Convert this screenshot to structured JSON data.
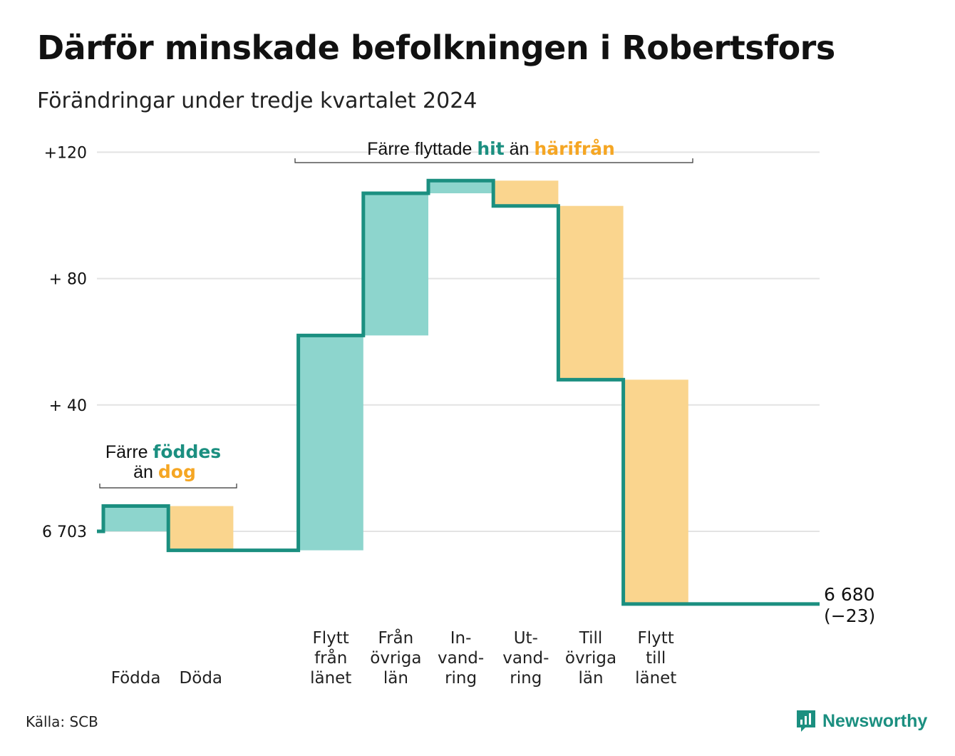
{
  "title": "Därför minskade befolkningen i Robertsfors",
  "subtitle": "Förändringar under tredje kvartalet 2024",
  "source": "Källa: SCB",
  "brand": "Newsworthy",
  "colors": {
    "increase_fill": "#8dd5cd",
    "decrease_fill": "#fad58e",
    "line": "#1b8f80",
    "accent_text_teal": "#1b8f80",
    "accent_text_orange": "#f5a623",
    "grid": "#e3e3e3"
  },
  "annotations": {
    "births": {
      "prefix": "Färre ",
      "highlight1": "föddes",
      "line2_prefix": "än ",
      "highlight2": "dog"
    },
    "moves": {
      "prefix": "Färre flyttade ",
      "highlight1": "hit",
      "mid": " än ",
      "highlight2": "härifrån"
    }
  },
  "chart_data": {
    "type": "waterfall",
    "title": "Därför minskade befolkningen i Robertsfors",
    "subtitle": "Förändringar under tredje kvartalet 2024",
    "baseline": 6703,
    "end_value": 6680,
    "net_change": -23,
    "y_tick_labels": [
      "+120",
      "+ 80",
      "+ 40",
      "6 703"
    ],
    "y_ticks": [
      120,
      80,
      40,
      0
    ],
    "ylim": [
      -30,
      122
    ],
    "end_label": [
      "6 680",
      "(−23)"
    ],
    "steps": [
      {
        "category_lines": [
          "Födda"
        ],
        "change": 8,
        "kind": "increase"
      },
      {
        "category_lines": [
          "Döda"
        ],
        "change": -14,
        "kind": "decrease"
      },
      {
        "category_lines": [
          ""
        ],
        "change": 0,
        "kind": "none"
      },
      {
        "category_lines": [
          "Flytt",
          "från",
          "länet"
        ],
        "change": 68,
        "kind": "increase"
      },
      {
        "category_lines": [
          "Från",
          "övriga",
          "län"
        ],
        "change": 45,
        "kind": "increase"
      },
      {
        "category_lines": [
          "In-",
          "vand-",
          "ring"
        ],
        "change": 4,
        "kind": "increase"
      },
      {
        "category_lines": [
          "Ut-",
          "vand-",
          "ring"
        ],
        "change": -8,
        "kind": "decrease"
      },
      {
        "category_lines": [
          "Till",
          "övriga",
          "län"
        ],
        "change": -55,
        "kind": "decrease"
      },
      {
        "category_lines": [
          "Flytt",
          "till",
          "länet"
        ],
        "change": -71,
        "kind": "decrease"
      },
      {
        "category_lines": [
          ""
        ],
        "change": 0,
        "kind": "none"
      }
    ]
  }
}
